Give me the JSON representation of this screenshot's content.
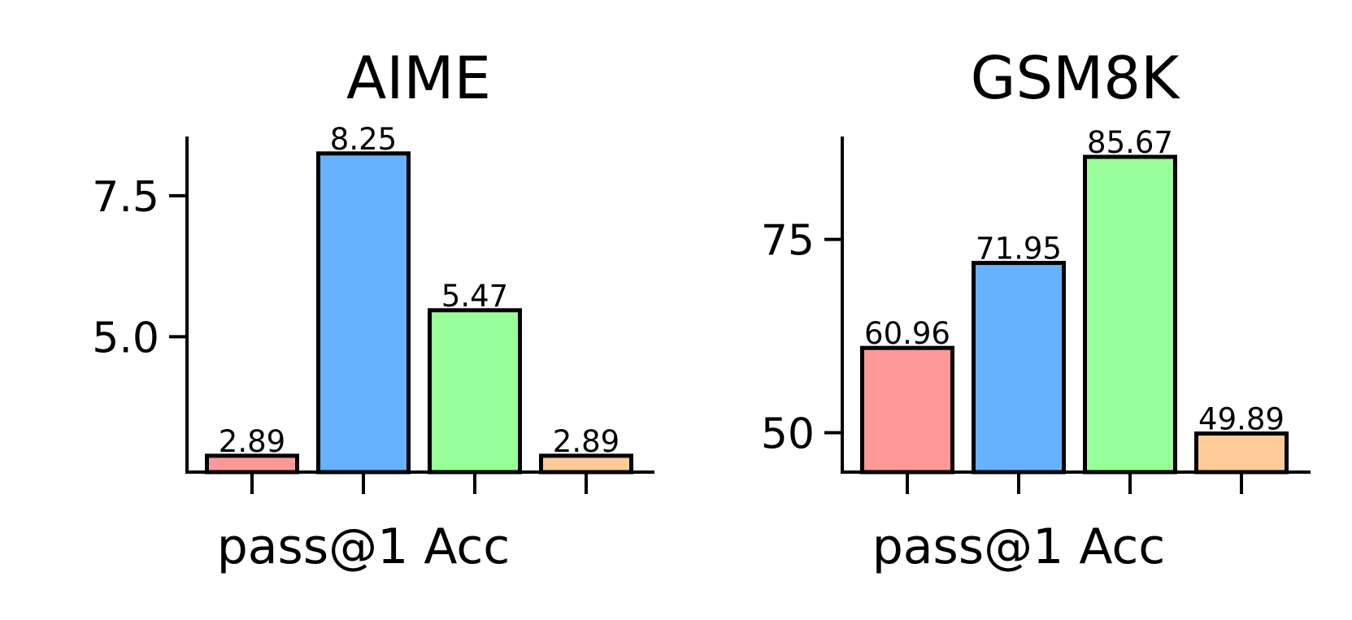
{
  "chart_data": [
    {
      "type": "bar",
      "title": "AIME",
      "xlabel": "pass@1 Acc",
      "ylabel": "",
      "categories": [
        "",
        "",
        "",
        ""
      ],
      "values": [
        2.89,
        8.25,
        5.47,
        2.89
      ],
      "value_labels": [
        "2.89",
        "8.25",
        "5.47",
        "2.89"
      ],
      "colors": [
        "#ff9999",
        "#66b2ff",
        "#99ff99",
        "#ffcc99"
      ],
      "edge_color": "#000000",
      "ylim": [
        2.6,
        8.55
      ],
      "yticks": [
        5.0,
        7.5
      ],
      "ytick_labels": [
        "5.0",
        "7.5"
      ],
      "grid": false,
      "legend": "none"
    },
    {
      "type": "bar",
      "title": "GSM8K",
      "xlabel": "pass@1 Acc",
      "ylabel": "",
      "categories": [
        "",
        "",
        "",
        ""
      ],
      "values": [
        60.96,
        71.95,
        85.67,
        49.89
      ],
      "value_labels": [
        "60.96",
        "71.95",
        "85.67",
        "49.89"
      ],
      "colors": [
        "#ff9999",
        "#66b2ff",
        "#99ff99",
        "#ffcc99"
      ],
      "edge_color": "#000000",
      "ylim": [
        44.9,
        88.3
      ],
      "yticks": [
        50,
        75
      ],
      "ytick_labels": [
        "50",
        "75"
      ],
      "grid": false,
      "legend": "none"
    }
  ]
}
